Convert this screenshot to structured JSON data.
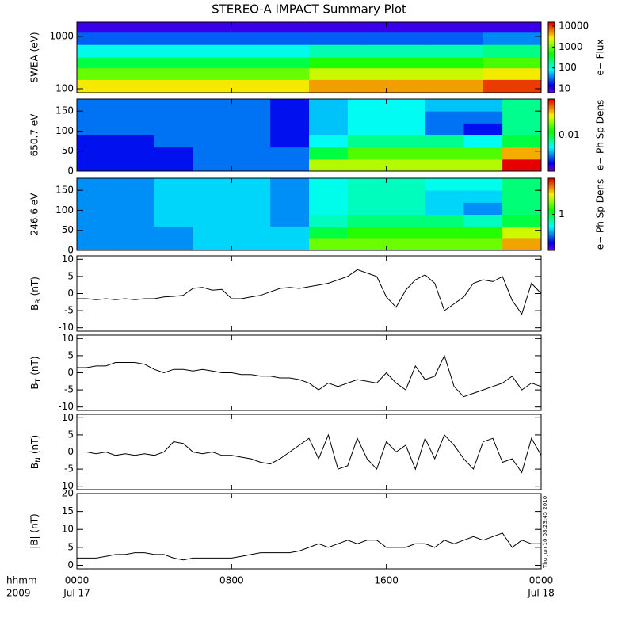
{
  "chart_data": [
    {
      "type": "heatmap",
      "title": "STEREO-A IMPACT Summary Plot",
      "ylabel": "SWEA (eV)",
      "log_y": true,
      "log_z": true,
      "ylim": [
        84,
        1870
      ],
      "yticks": [
        100,
        1000
      ],
      "x_edges": [
        0,
        3,
        6,
        9,
        12,
        15,
        18,
        21,
        24
      ],
      "y_edges": [
        84,
        150,
        250,
        400,
        700,
        1200,
        1870
      ],
      "z": [
        [
          3000,
          3000,
          3000,
          3000,
          5000,
          5000,
          5000,
          10000
        ],
        [
          1000,
          1000,
          1000,
          1000,
          2000,
          2000,
          2000,
          3000
        ],
        [
          300,
          300,
          300,
          300,
          600,
          600,
          600,
          800
        ],
        [
          100,
          100,
          100,
          100,
          150,
          150,
          150,
          200
        ],
        [
          30,
          30,
          30,
          30,
          30,
          30,
          30,
          40
        ],
        [
          10,
          10,
          10,
          10,
          10,
          10,
          10,
          10
        ]
      ],
      "zlim": [
        6.5,
        15500
      ],
      "zticks": [
        10,
        100,
        1000,
        10000
      ],
      "zlabel": "e− Flux"
    },
    {
      "type": "heatmap",
      "ylabel": "650.7 eV",
      "log_y": false,
      "log_z": true,
      "ylim": [
        0,
        180
      ],
      "yticks": [
        0,
        50,
        100,
        150
      ],
      "x_edges": [
        0,
        2,
        4,
        6,
        8,
        10,
        12,
        14,
        16,
        18,
        20,
        22,
        24
      ],
      "y_edges": [
        0,
        30,
        60,
        90,
        120,
        150,
        180
      ],
      "z": [
        [
          0.003,
          0.003,
          0.003,
          0.004,
          0.004,
          0.004,
          0.02,
          0.02,
          0.02,
          0.02,
          0.02,
          0.05
        ],
        [
          0.003,
          0.003,
          0.003,
          0.004,
          0.004,
          0.004,
          0.01,
          0.015,
          0.015,
          0.015,
          0.015,
          0.03
        ],
        [
          0.003,
          0.003,
          0.004,
          0.004,
          0.004,
          0.003,
          0.006,
          0.008,
          0.008,
          0.008,
          0.006,
          0.01
        ],
        [
          0.004,
          0.004,
          0.004,
          0.004,
          0.004,
          0.003,
          0.005,
          0.006,
          0.006,
          0.004,
          0.003,
          0.008
        ],
        [
          0.004,
          0.004,
          0.004,
          0.004,
          0.004,
          0.003,
          0.005,
          0.006,
          0.006,
          0.004,
          0.004,
          0.008
        ],
        [
          0.004,
          0.004,
          0.004,
          0.004,
          0.004,
          0.003,
          0.005,
          0.006,
          0.006,
          0.005,
          0.005,
          0.008
        ]
      ],
      "zlim": [
        0.002,
        0.05
      ],
      "zticks": [
        0.01
      ],
      "zlabel": "e− Ph Sp Dens"
    },
    {
      "type": "heatmap",
      "ylabel": "246.6 eV",
      "log_y": false,
      "log_z": true,
      "ylim": [
        0,
        180
      ],
      "yticks": [
        0,
        50,
        100,
        150
      ],
      "x_edges": [
        0,
        2,
        4,
        6,
        8,
        10,
        12,
        14,
        16,
        18,
        20,
        22,
        24
      ],
      "y_edges": [
        0,
        30,
        60,
        90,
        120,
        150,
        180
      ],
      "z": [
        [
          0.3,
          0.3,
          0.3,
          0.4,
          0.4,
          0.4,
          2,
          2,
          2,
          2,
          2,
          5
        ],
        [
          0.3,
          0.3,
          0.3,
          0.4,
          0.4,
          0.4,
          1,
          1.5,
          1.5,
          1.5,
          1.5,
          3
        ],
        [
          0.3,
          0.3,
          0.4,
          0.4,
          0.4,
          0.3,
          0.6,
          0.8,
          0.8,
          0.8,
          0.6,
          1
        ],
        [
          0.3,
          0.3,
          0.4,
          0.4,
          0.4,
          0.3,
          0.5,
          0.6,
          0.6,
          0.4,
          0.3,
          0.8
        ],
        [
          0.3,
          0.3,
          0.4,
          0.4,
          0.4,
          0.3,
          0.5,
          0.6,
          0.6,
          0.4,
          0.4,
          0.8
        ],
        [
          0.3,
          0.3,
          0.4,
          0.4,
          0.4,
          0.3,
          0.5,
          0.6,
          0.6,
          0.5,
          0.5,
          0.8
        ]
      ],
      "zlim": [
        0.1,
        10
      ],
      "zticks": [
        1
      ],
      "zlabel": "e− Ph Sp Dens"
    },
    {
      "type": "line",
      "ylabel": "B",
      "ylabel_sub": "R",
      "ylabel_unit": "(nT)",
      "color": "#000000",
      "ylim": [
        -11,
        11
      ],
      "yticks": [
        -10,
        -5,
        0,
        5,
        10
      ],
      "x": [
        0,
        0.5,
        1,
        1.5,
        2,
        2.5,
        3,
        3.5,
        4,
        4.5,
        5,
        5.5,
        6,
        6.5,
        7,
        7.5,
        8,
        8.5,
        9,
        9.5,
        10,
        10.5,
        11,
        11.5,
        12,
        12.5,
        13,
        13.5,
        14,
        14.5,
        15,
        15.5,
        16,
        16.5,
        17,
        17.5,
        18,
        18.5,
        19,
        19.5,
        20,
        20.5,
        21,
        21.5,
        22,
        22.5,
        23,
        23.5,
        24
      ],
      "values": [
        -1.5,
        -1.5,
        -1.8,
        -1.5,
        -1.8,
        -1.5,
        -1.8,
        -1.5,
        -1.5,
        -1,
        -0.8,
        -0.5,
        1.5,
        1.8,
        1,
        1.2,
        -1.5,
        -1.5,
        -1,
        -0.5,
        0.5,
        1.5,
        1.8,
        1.5,
        2,
        2.5,
        3,
        4,
        5,
        7,
        6,
        5,
        -1,
        -4,
        1,
        4,
        5.5,
        3,
        -5,
        -3,
        -1,
        3,
        4,
        3.5,
        5,
        -2,
        -6,
        3,
        0
      ]
    },
    {
      "type": "line",
      "ylabel": "B",
      "ylabel_sub": "T",
      "ylabel_unit": "(nT)",
      "color": "#000000",
      "ylim": [
        -11,
        11
      ],
      "yticks": [
        -10,
        -5,
        0,
        5,
        10
      ],
      "x": [
        0,
        0.5,
        1,
        1.5,
        2,
        2.5,
        3,
        3.5,
        4,
        4.5,
        5,
        5.5,
        6,
        6.5,
        7,
        7.5,
        8,
        8.5,
        9,
        9.5,
        10,
        10.5,
        11,
        11.5,
        12,
        12.5,
        13,
        13.5,
        14,
        14.5,
        15,
        15.5,
        16,
        16.5,
        17,
        17.5,
        18,
        18.5,
        19,
        19.5,
        20,
        20.5,
        21,
        21.5,
        22,
        22.5,
        23,
        23.5,
        24
      ],
      "values": [
        1.5,
        1.5,
        2,
        2,
        3,
        3,
        3,
        2.5,
        1,
        0,
        1,
        1,
        0.5,
        1,
        0.5,
        0,
        0,
        -0.5,
        -0.5,
        -1,
        -1,
        -1.5,
        -1.5,
        -2,
        -3,
        -5,
        -3,
        -4,
        -3,
        -2,
        -2.5,
        -3,
        0,
        -3,
        -5,
        2,
        -2,
        -1,
        5,
        -4,
        -7,
        -6,
        -5,
        -4,
        -3,
        -1,
        -5,
        -3,
        -4
      ]
    },
    {
      "type": "line",
      "ylabel": "B",
      "ylabel_sub": "N",
      "ylabel_unit": "(nT)",
      "color": "#000000",
      "ylim": [
        -11,
        11
      ],
      "yticks": [
        -10,
        -5,
        0,
        5,
        10
      ],
      "x": [
        0,
        0.5,
        1,
        1.5,
        2,
        2.5,
        3,
        3.5,
        4,
        4.5,
        5,
        5.5,
        6,
        6.5,
        7,
        7.5,
        8,
        8.5,
        9,
        9.5,
        10,
        10.5,
        11,
        11.5,
        12,
        12.5,
        13,
        13.5,
        14,
        14.5,
        15,
        15.5,
        16,
        16.5,
        17,
        17.5,
        18,
        18.5,
        19,
        19.5,
        20,
        20.5,
        21,
        21.5,
        22,
        22.5,
        23,
        23.5,
        24
      ],
      "values": [
        0,
        0,
        -0.5,
        0,
        -1,
        -0.5,
        -1,
        -0.5,
        -1,
        0,
        3,
        2.5,
        0,
        -0.5,
        0,
        -1,
        -1,
        -1.5,
        -2,
        -3,
        -3.5,
        -2,
        0,
        2,
        4,
        -2,
        5,
        -5,
        -4,
        4,
        -2,
        -5,
        3,
        0,
        2,
        -5,
        4,
        -2,
        5,
        2,
        -2,
        -5,
        3,
        4,
        -3,
        -2,
        -6,
        4,
        -1
      ]
    },
    {
      "type": "line",
      "ylabel": "|B| (nT)",
      "color": "#000000",
      "ylim": [
        -1,
        20
      ],
      "yticks": [
        0,
        5,
        10,
        15,
        20
      ],
      "x": [
        0,
        0.5,
        1,
        1.5,
        2,
        2.5,
        3,
        3.5,
        4,
        4.5,
        5,
        5.5,
        6,
        6.5,
        7,
        7.5,
        8,
        8.5,
        9,
        9.5,
        10,
        10.5,
        11,
        11.5,
        12,
        12.5,
        13,
        13.5,
        14,
        14.5,
        15,
        15.5,
        16,
        16.5,
        17,
        17.5,
        18,
        18.5,
        19,
        19.5,
        20,
        20.5,
        21,
        21.5,
        22,
        22.5,
        23,
        23.5,
        24
      ],
      "values": [
        2,
        2,
        2,
        2.5,
        3,
        3,
        3.5,
        3.5,
        3,
        3,
        2,
        1.5,
        2,
        2,
        2,
        2,
        2,
        2.5,
        3,
        3.5,
        3.5,
        3.5,
        3.5,
        4,
        5,
        6,
        5,
        6,
        7,
        6,
        7,
        7,
        5,
        5,
        5,
        6,
        6,
        5,
        7,
        6,
        7,
        8,
        7,
        8,
        9,
        5,
        7,
        6,
        6
      ],
      "xlim": [
        0,
        24
      ],
      "xticks": [
        {
          "value": 0,
          "label": "0000"
        },
        {
          "value": 8,
          "label": "0800"
        },
        {
          "value": 16,
          "label": "1600"
        },
        {
          "value": 24,
          "label": "0000"
        }
      ],
      "xtick_sublabels": [
        "Jul 17",
        null,
        null,
        "Jul 18"
      ],
      "xlabel": "hhmm",
      "xlabel_year": "2009",
      "timestamp": "Thu Jun 10 08:23:45 2010"
    }
  ]
}
